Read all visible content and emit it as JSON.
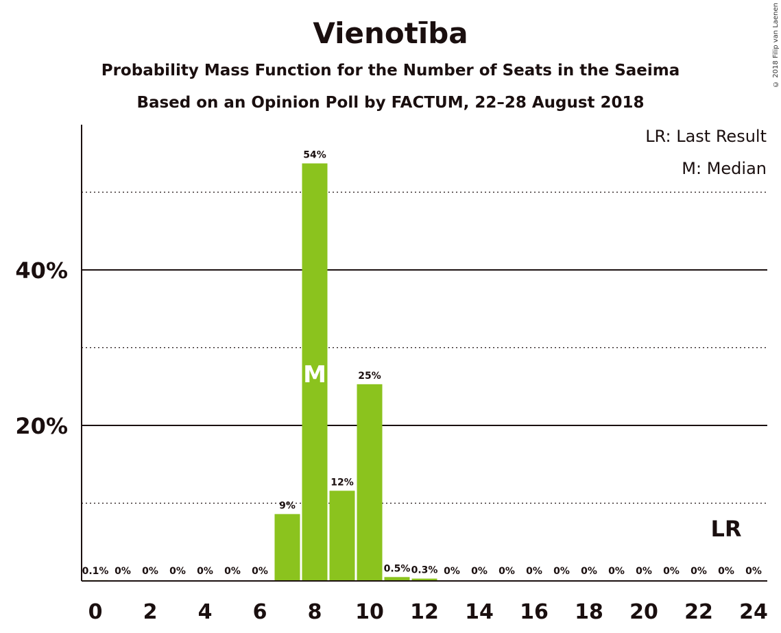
{
  "title": "Vienotība",
  "subtitle1": "Probability Mass Function for the Number of Seats in the Saeima",
  "subtitle2": "Based on an Opinion Poll by FACTUM, 22–28 August 2018",
  "copyright": "© 2018 Filip van Laenen",
  "legend": {
    "lr": "LR: Last Result",
    "m": "M: Median"
  },
  "colors": {
    "bar": "#8bc31e",
    "text": "#1a0f0f"
  },
  "chart_data": {
    "type": "bar",
    "x": [
      0,
      1,
      2,
      3,
      4,
      5,
      6,
      7,
      8,
      9,
      10,
      11,
      12,
      13,
      14,
      15,
      16,
      17,
      18,
      19,
      20,
      21,
      22,
      23,
      24
    ],
    "values": [
      0.1,
      0,
      0,
      0,
      0,
      0,
      0,
      8.6,
      53.7,
      11.6,
      25.3,
      0.5,
      0.3,
      0,
      0,
      0,
      0,
      0,
      0,
      0,
      0,
      0,
      0,
      0,
      0
    ],
    "value_labels": [
      "0.1%",
      "0%",
      "0%",
      "0%",
      "0%",
      "0%",
      "0%",
      "9%",
      "54%",
      "12%",
      "25%",
      "0.5%",
      "0.3%",
      "0%",
      "0%",
      "0%",
      "0%",
      "0%",
      "0%",
      "0%",
      "0%",
      "0%",
      "0%",
      "0%",
      "0%"
    ],
    "x_tick_labels": [
      "0",
      "2",
      "4",
      "6",
      "8",
      "10",
      "12",
      "14",
      "16",
      "18",
      "20",
      "22",
      "24"
    ],
    "x_ticks": [
      0,
      2,
      4,
      6,
      8,
      10,
      12,
      14,
      16,
      18,
      20,
      22,
      24
    ],
    "y_ticks_labeled": [
      {
        "value": 20,
        "label": "20%"
      },
      {
        "value": 40,
        "label": "40%"
      }
    ],
    "y_gridlines_dotted": [
      10,
      30,
      50
    ],
    "ylim": [
      0,
      58.5
    ],
    "median": 8,
    "median_label": "M",
    "last_result": 23,
    "last_result_label": "LR"
  }
}
